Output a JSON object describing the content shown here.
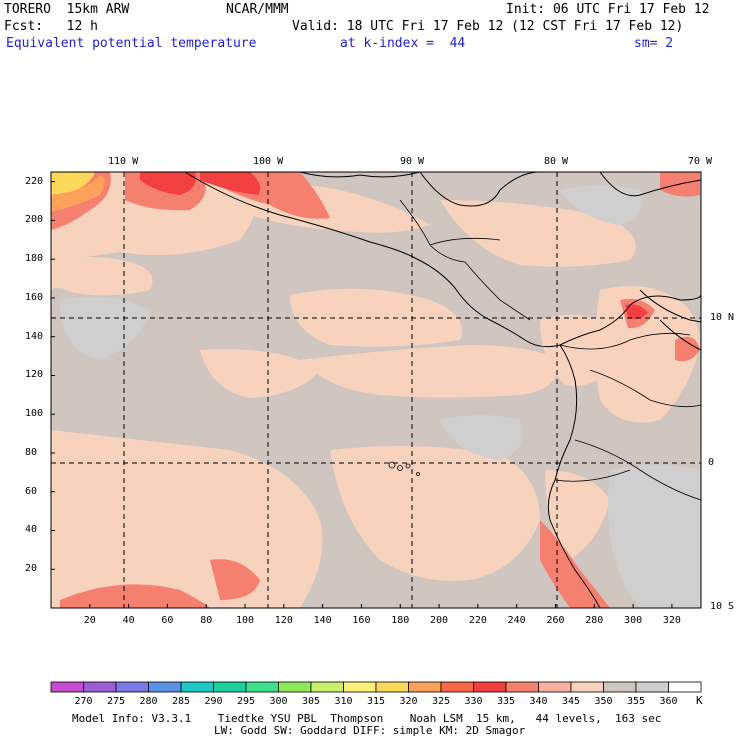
{
  "header": {
    "model": "TORERO  15km ARW",
    "center": "NCAR/MMM",
    "init": "Init: 06 UTC Fri 17 Feb 12",
    "fcst": "Fcst:   12 h",
    "valid": "Valid: 18 UTC Fri 17 Feb 12 (12 CST Fri 17 Feb 12)",
    "field": "Equivalent potential temperature",
    "level": "at k-index =  44",
    "smooth": "sm= 2"
  },
  "map": {
    "longitude_labels": [
      "110 W",
      "100 W",
      "90 W",
      "80 W",
      "70 W"
    ],
    "latitude_labels": [
      "10 N",
      "0",
      "10 S"
    ],
    "y_ticks": [
      "220",
      "200",
      "180",
      "160",
      "140",
      "120",
      "100",
      "80",
      "60",
      "40",
      "20"
    ],
    "x_ticks": [
      "20",
      "40",
      "60",
      "80",
      "100",
      "120",
      "140",
      "160",
      "180",
      "200",
      "220",
      "240",
      "260",
      "280",
      "300",
      "320"
    ]
  },
  "colorbar": {
    "levels": [
      "270",
      "275",
      "280",
      "285",
      "290",
      "295",
      "300",
      "305",
      "310",
      "315",
      "320",
      "325",
      "330",
      "335",
      "340",
      "345",
      "350",
      "355",
      "360"
    ],
    "unit": "K",
    "colors": [
      "#c84bd2",
      "#9a5fd8",
      "#7a7ae6",
      "#5a92e8",
      "#1ec8c8",
      "#1ed0a0",
      "#3ee08a",
      "#8ee85a",
      "#c8f06a",
      "#fff07a",
      "#fcd85a",
      "#fca05a",
      "#f86848",
      "#f24040",
      "#f68070",
      "#fab0a0",
      "#f7d2bd",
      "#cfc6c2",
      "#cfcfcf",
      "#ffffff"
    ]
  },
  "footer": {
    "line1": "Model Info: V3.3.1    Tiedtke YSU PBL  Thompson    Noah LSM  15 km,   44 levels,  163 sec",
    "line2": "LW: Godd SW: Goddard DIFF: simple KM: 2D Smagor"
  }
}
